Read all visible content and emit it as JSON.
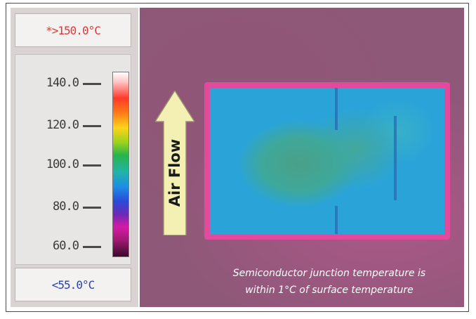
{
  "scale": {
    "max_label": "*>150.0°C",
    "min_label": "<55.0°C",
    "ticks": [
      {
        "label": "140.0"
      },
      {
        "label": "120.0"
      },
      {
        "label": "100.0"
      },
      {
        "label": "80.0"
      },
      {
        "label": "60.0"
      }
    ]
  },
  "airflow": {
    "label": "Air Flow"
  },
  "caption": {
    "line1": "Semiconductor junction temperature is",
    "line2": "within 1°C of surface temperature"
  }
}
